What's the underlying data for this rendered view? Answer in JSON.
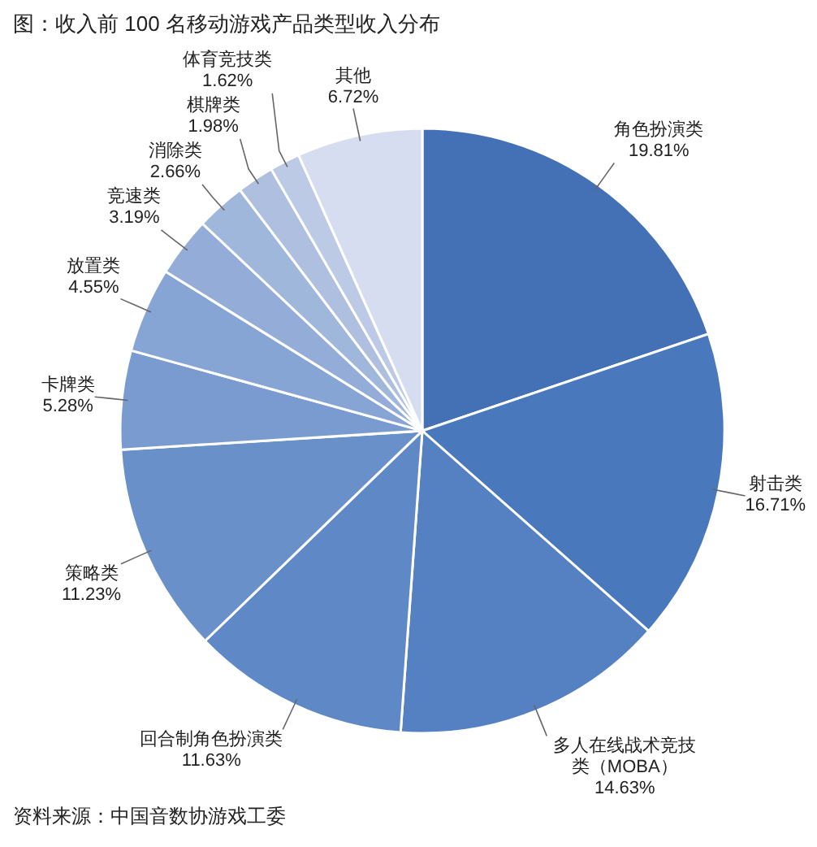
{
  "chart_data": {
    "type": "pie",
    "title": "图：收入前 100 名移动游戏产品类型收入分布",
    "categories": [
      "角色扮演类",
      "射击类",
      "多人在线战术竞技类（MOBA）",
      "回合制角色扮演类",
      "策略类",
      "卡牌类",
      "放置类",
      "竞速类",
      "消除类",
      "棋牌类",
      "体育竞技类",
      "其他"
    ],
    "values": [
      19.81,
      16.71,
      14.63,
      11.63,
      11.23,
      5.28,
      4.55,
      3.19,
      2.66,
      1.98,
      1.62,
      6.72
    ],
    "colors": [
      "#4470b5",
      "#4a78bc",
      "#5580c2",
      "#5f88c6",
      "#6a90ca",
      "#7a9bd0",
      "#86a4d4",
      "#93add8",
      "#a0b7dc",
      "#aebfe0",
      "#bccae6",
      "#d6ddf0"
    ],
    "value_labels": [
      "19.81%",
      "16.71%",
      "14.63%",
      "11.63%",
      "11.23%",
      "5.28%",
      "4.55%",
      "3.19%",
      "2.66%",
      "1.98%",
      "1.62%",
      "6.72%"
    ],
    "annotations": [
      "资料来源：中国音数协游戏工委"
    ]
  }
}
